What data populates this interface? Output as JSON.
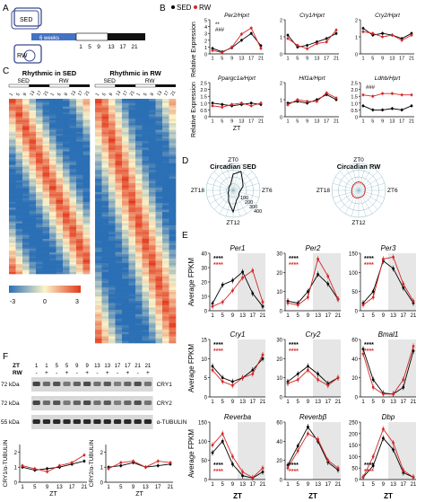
{
  "panels": {
    "a": "A",
    "b": "B",
    "c": "C",
    "d": "D",
    "e": "E",
    "f": "F"
  },
  "panel_a": {
    "sed": "SED",
    "rw": "RW",
    "weeks": "6 weeks",
    "zt_ticks": [
      "1",
      "5",
      "9",
      "13",
      "17",
      "21"
    ]
  },
  "panel_b": {
    "legend": [
      {
        "name": "SED",
        "color": "#000000"
      },
      {
        "name": "RW",
        "color": "#d62728"
      }
    ],
    "ylabel": "Relative Expression",
    "xlabel": "ZT",
    "xticks": [
      "1",
      "5",
      "9",
      "13",
      "17",
      "21"
    ],
    "subplots": [
      {
        "title": "Per2/Hprt",
        "yticks": [
          "0",
          "1",
          "2",
          "3",
          "4",
          "5"
        ],
        "ymax": 5,
        "annotations": [
          "**",
          "###"
        ],
        "sed": [
          0.8,
          0.3,
          0.9,
          2.0,
          3.0,
          1.2
        ],
        "rw": [
          0.5,
          0.2,
          1.0,
          2.9,
          3.8,
          0.8
        ]
      },
      {
        "title": "Cry1/Hprt",
        "yticks": [
          "0",
          "1",
          "2"
        ],
        "ymax": 2,
        "annotations": [],
        "sed": [
          1.1,
          0.4,
          0.5,
          0.7,
          0.9,
          1.2
        ],
        "rw": [
          0.9,
          0.5,
          0.3,
          0.6,
          0.7,
          1.4
        ]
      },
      {
        "title": "Cry2/Hprt",
        "yticks": [
          "0",
          "1",
          "2"
        ],
        "ymax": 2,
        "annotations": [],
        "sed": [
          1.5,
          1.1,
          1.2,
          1.1,
          0.9,
          1.2
        ],
        "rw": [
          1.3,
          1.2,
          1.0,
          1.1,
          0.8,
          1.1
        ]
      },
      {
        "title": "Ppargc1a/Hprt",
        "yticks": [
          "0",
          "0.5",
          "1.0",
          "1.5",
          "2.0",
          "2.5"
        ],
        "ymax": 2.5,
        "annotations": [],
        "sed": [
          1.0,
          0.9,
          0.8,
          0.9,
          1.0,
          0.9
        ],
        "rw": [
          0.8,
          0.7,
          0.9,
          1.0,
          0.8,
          1.0
        ]
      },
      {
        "title": "Hif1a/Hprt",
        "yticks": [
          "0",
          "1",
          "2"
        ],
        "ymax": 2,
        "annotations": [],
        "sed": [
          0.8,
          0.9,
          0.8,
          1.0,
          1.3,
          1.0
        ],
        "rw": [
          0.7,
          1.0,
          0.9,
          0.9,
          1.4,
          1.1
        ]
      },
      {
        "title": "Ldhb/Hprt",
        "yticks": [
          "0",
          "0.5",
          "1.0",
          "1.5",
          "2.0",
          "2.5"
        ],
        "ymax": 2.5,
        "annotations": [
          "###"
        ],
        "sed": [
          0.8,
          0.5,
          0.5,
          0.6,
          0.5,
          0.8
        ],
        "rw": [
          1.6,
          1.5,
          1.7,
          1.7,
          1.6,
          1.6
        ]
      }
    ]
  },
  "panel_c": {
    "left_title": "Rhythmic in SED",
    "right_title": "Rhythmic in RW",
    "sed": "SED",
    "rw": "RW",
    "zt_labels": [
      "1",
      "5",
      "9",
      "13",
      "17",
      "21",
      "1",
      "5",
      "9",
      "13",
      "17",
      "21"
    ],
    "colorbar_ticks": [
      "-3",
      "0",
      "3"
    ]
  },
  "panel_d": {
    "left_title": "Circadian SED",
    "right_title": "Circadian RW",
    "zt_labels": [
      "ZT0",
      "ZT6",
      "ZT12",
      "ZT18"
    ],
    "radial_ticks": [
      "100",
      "200",
      "300",
      "400"
    ]
  },
  "panel_e": {
    "ylabel": "Average FPKM",
    "xlabel": "ZT",
    "xticks": [
      "1",
      "5",
      "9",
      "13",
      "17",
      "21"
    ],
    "stars": "****",
    "subplots": [
      {
        "title": "Per1",
        "yticks": [
          "0",
          "10",
          "20",
          "30",
          "40"
        ],
        "ymax": 40,
        "sed": [
          5,
          18,
          21,
          27,
          12,
          3
        ],
        "rw": [
          3,
          6,
          14,
          23,
          28,
          6
        ]
      },
      {
        "title": "Per2",
        "yticks": [
          "0",
          "10",
          "20",
          "30"
        ],
        "ymax": 30,
        "sed": [
          5,
          4,
          10,
          19,
          14,
          6
        ],
        "rw": [
          4,
          3,
          7,
          27,
          18,
          6
        ]
      },
      {
        "title": "Per3",
        "yticks": [
          "0",
          "50",
          "100",
          "150"
        ],
        "ymax": 150,
        "sed": [
          20,
          50,
          130,
          110,
          60,
          20
        ],
        "rw": [
          15,
          35,
          135,
          140,
          70,
          25
        ]
      },
      {
        "title": "Cry1",
        "yticks": [
          "0",
          "5",
          "10",
          "15"
        ],
        "ymax": 15,
        "sed": [
          8,
          5,
          4,
          5,
          7,
          10
        ],
        "rw": [
          7,
          4,
          3,
          5,
          6,
          11
        ]
      },
      {
        "title": "Cry2",
        "yticks": [
          "0",
          "10",
          "20",
          "30"
        ],
        "ymax": 30,
        "sed": [
          8,
          12,
          16,
          12,
          7,
          10
        ],
        "rw": [
          7,
          9,
          14,
          9,
          6,
          10
        ]
      },
      {
        "title": "Bmal1",
        "yticks": [
          "0",
          "20",
          "40",
          "60"
        ],
        "ymax": 60,
        "sed": [
          50,
          18,
          4,
          3,
          10,
          48
        ],
        "rw": [
          45,
          10,
          3,
          3,
          18,
          53
        ]
      },
      {
        "title": "Reverba",
        "yticks": [
          "0",
          "50",
          "100",
          "150"
        ],
        "ymax": 150,
        "sed": [
          70,
          100,
          40,
          10,
          4,
          20
        ],
        "rw": [
          90,
          120,
          60,
          20,
          5,
          30
        ]
      },
      {
        "title": "Reverbβ",
        "yticks": [
          "0",
          "20",
          "40",
          "60"
        ],
        "ymax": 60,
        "sed": [
          15,
          35,
          55,
          40,
          18,
          10
        ],
        "rw": [
          12,
          30,
          48,
          42,
          20,
          12
        ]
      },
      {
        "title": "Dbp",
        "yticks": [
          "0",
          "50",
          "100",
          "150",
          "200",
          "250"
        ],
        "ymax": 250,
        "sed": [
          10,
          60,
          180,
          130,
          30,
          10
        ],
        "rw": [
          10,
          100,
          220,
          160,
          40,
          10
        ]
      }
    ]
  },
  "panel_f": {
    "zt_label": "ZT",
    "rw_label": "RW",
    "zt_row": [
      "1",
      "1",
      "5",
      "5",
      "9",
      "9",
      "13",
      "13",
      "17",
      "17",
      "21",
      "21"
    ],
    "rw_row": [
      "-",
      "+",
      "-",
      "+",
      "-",
      "+",
      "-",
      "+",
      "-",
      "+",
      "-",
      "+"
    ],
    "kda": [
      "72 kDa",
      "72 kDa",
      "55 kDa"
    ],
    "bands": [
      "CRY1",
      "CRY2",
      "α-TUBULIN"
    ],
    "xticks": [
      "1",
      "5",
      "9",
      "13",
      "17",
      "21"
    ],
    "xlabel": "ZT",
    "plots": [
      {
        "ylabel": "CRY1/α-TUBULIN",
        "yticks": [
          "0",
          "1",
          "2"
        ],
        "ymax": 2.5,
        "sed": [
          1.0,
          0.8,
          0.9,
          1.0,
          1.2,
          1.4
        ],
        "rw": [
          1.1,
          0.9,
          0.7,
          1.1,
          1.3,
          1.8
        ]
      },
      {
        "ylabel": "CRY2/α-TUBULIN",
        "yticks": [
          "0",
          "1",
          "2"
        ],
        "ymax": 2.5,
        "sed": [
          1.0,
          1.1,
          1.3,
          1.0,
          1.1,
          1.2
        ],
        "rw": [
          0.9,
          1.3,
          1.4,
          1.0,
          1.4,
          1.3
        ]
      }
    ]
  }
}
